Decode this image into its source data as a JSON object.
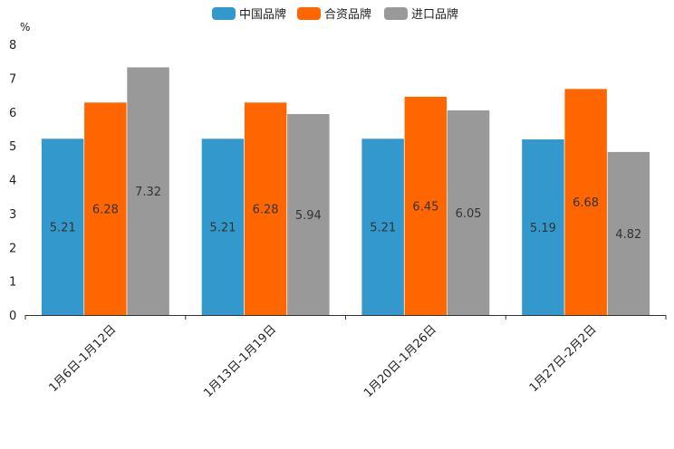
{
  "chart_data": {
    "type": "bar",
    "ylabel": "%",
    "ylim": [
      0,
      8
    ],
    "yticks": [
      0,
      1,
      2,
      3,
      4,
      5,
      6,
      7,
      8
    ],
    "grid": false,
    "legend_position": "top-center",
    "categories": [
      "1月6日-1月12日",
      "1月13日-1月19日",
      "1月20日-1月26日",
      "1月27日-2月2日"
    ],
    "series": [
      {
        "name": "中国品牌",
        "color": "#3399cc",
        "values": [
          5.21,
          5.21,
          5.21,
          5.19
        ],
        "labels": [
          "5.21",
          "5.21",
          "5.21",
          "5.19"
        ]
      },
      {
        "name": "合资品牌",
        "color": "#ff6600",
        "values": [
          6.28,
          6.28,
          6.45,
          6.68
        ],
        "labels": [
          "6.28",
          "6.28",
          "6.45",
          "6.68"
        ]
      },
      {
        "name": "进口品牌",
        "color": "#999999",
        "values": [
          7.32,
          5.94,
          6.05,
          4.82
        ],
        "labels": [
          "7.32",
          "5.94",
          "6.05",
          "4.82"
        ]
      }
    ]
  }
}
